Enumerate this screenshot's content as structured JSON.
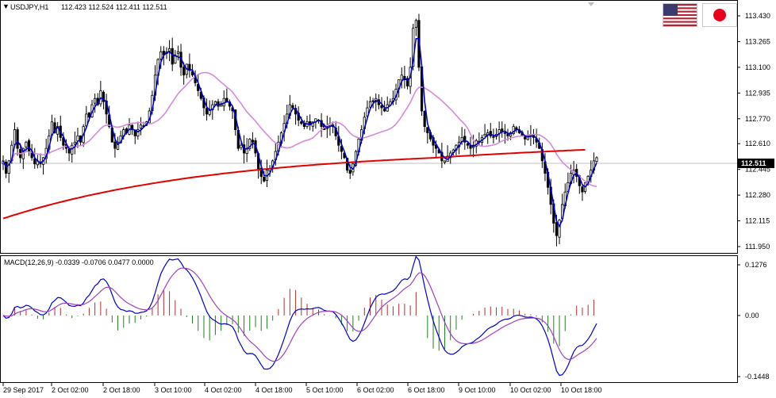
{
  "header": {
    "symbol_caret": "▼",
    "symbol": "USDJPY,H1",
    "ohlc": "112.423 112.524 112.411 112.511",
    "macd_label": "MACD(12,26,9) -0.0339 -0.0706 0.0477 0.0000"
  },
  "flags": {
    "left": "us-flag",
    "right": "japan-flag"
  },
  "colors": {
    "candle": "#000000",
    "fast_ma": "#0000cc",
    "slow_ma": "#e20000",
    "mid_ma": "#d58ad9",
    "macd_line": "#0000cc",
    "signal_line": "#a040c0",
    "hist_pos": "#b03030",
    "hist_neg": "#208020",
    "price_tag_bg": "#000000",
    "price_tag_fg": "#ffffff"
  },
  "price_axis": {
    "labels": [
      "113.430",
      "113.265",
      "113.100",
      "112.935",
      "112.770",
      "112.610",
      "112.445",
      "112.280",
      "112.115",
      "111.950"
    ],
    "current": "112.511"
  },
  "macd_axis": {
    "labels": [
      "0.1276",
      "0.00",
      "-0.1448"
    ]
  },
  "time_axis": {
    "labels": [
      "29 Sep 2017",
      "2 Oct 02:00",
      "2 Oct 18:00",
      "3 Oct 10:00",
      "4 Oct 02:00",
      "4 Oct 18:00",
      "5 Oct 10:00",
      "6 Oct 02:00",
      "6 Oct 18:00",
      "9 Oct 10:00",
      "10 Oct 02:00",
      "10 Oct 18:00"
    ]
  },
  "chart_data": [
    {
      "type": "candlestick",
      "symbol": "USDJPY",
      "timeframe": "H1",
      "ylim": [
        111.95,
        113.43
      ],
      "close": [
        112.5,
        112.42,
        112.5,
        112.6,
        112.7,
        112.58,
        112.52,
        112.58,
        112.62,
        112.56,
        112.52,
        112.48,
        112.5,
        112.48,
        112.52,
        112.58,
        112.66,
        112.75,
        112.68,
        112.72,
        112.65,
        112.6,
        112.58,
        112.55,
        112.6,
        112.62,
        112.66,
        112.62,
        112.72,
        112.8,
        112.78,
        112.86,
        112.9,
        112.86,
        112.95,
        112.88,
        112.8,
        112.72,
        112.62,
        112.58,
        112.62,
        112.66,
        112.7,
        112.68,
        112.73,
        112.7,
        112.66,
        112.7,
        112.73,
        112.72,
        112.75,
        112.82,
        112.92,
        113.05,
        113.15,
        113.2,
        113.18,
        113.2,
        113.22,
        113.12,
        113.18,
        113.2,
        113.1,
        113.05,
        113.12,
        113.08,
        113.05,
        113.0,
        112.95,
        112.9,
        112.84,
        112.8,
        112.83,
        112.86,
        112.88,
        112.85,
        112.86,
        112.9,
        112.88,
        112.85,
        112.82,
        112.7,
        112.58,
        112.6,
        112.55,
        112.58,
        112.64,
        112.62,
        112.55,
        112.45,
        112.4,
        112.37,
        112.44,
        112.45,
        112.5,
        112.56,
        112.62,
        112.68,
        112.74,
        112.8,
        112.86,
        112.84,
        112.8,
        112.76,
        112.74,
        112.72,
        112.75,
        112.73,
        112.75,
        112.77,
        112.76,
        112.72,
        112.7,
        112.72,
        112.74,
        112.72,
        112.66,
        112.6,
        112.56,
        112.52,
        112.44,
        112.42,
        112.48,
        112.56,
        112.64,
        112.7,
        112.78,
        112.84,
        112.88,
        112.88,
        112.9,
        112.86,
        112.84,
        112.82,
        112.86,
        112.88,
        112.9,
        112.96,
        113.02,
        113.05,
        113.02,
        112.98,
        113.1,
        113.35,
        113.4,
        113.1,
        112.82,
        112.72,
        112.68,
        112.64,
        112.6,
        112.58,
        112.55,
        112.5,
        112.5,
        112.53,
        112.55,
        112.57,
        112.6,
        112.62,
        112.65,
        112.62,
        112.6,
        112.58,
        112.6,
        112.63,
        112.62,
        112.65,
        112.67,
        112.68,
        112.66,
        112.65,
        112.67,
        112.7,
        112.69,
        112.68,
        112.66,
        112.68,
        112.72,
        112.7,
        112.68,
        112.66,
        112.64,
        112.66,
        112.67,
        112.65,
        112.62,
        112.58,
        112.5,
        112.42,
        112.33,
        112.22,
        112.1,
        112.02,
        112.12,
        112.22,
        112.3,
        112.36,
        112.42,
        112.44,
        112.4,
        112.34,
        112.3,
        112.36,
        112.4,
        112.44,
        112.5,
        112.52
      ],
      "sma_fast_last": 112.45,
      "sma_slow_last": 112.57
    },
    {
      "type": "bar",
      "name": "MACD(12,26,9)",
      "ylim": [
        -0.1448,
        0.1276
      ],
      "values": [
        -0.0339,
        -0.0706,
        0.0477,
        0.0
      ]
    }
  ]
}
